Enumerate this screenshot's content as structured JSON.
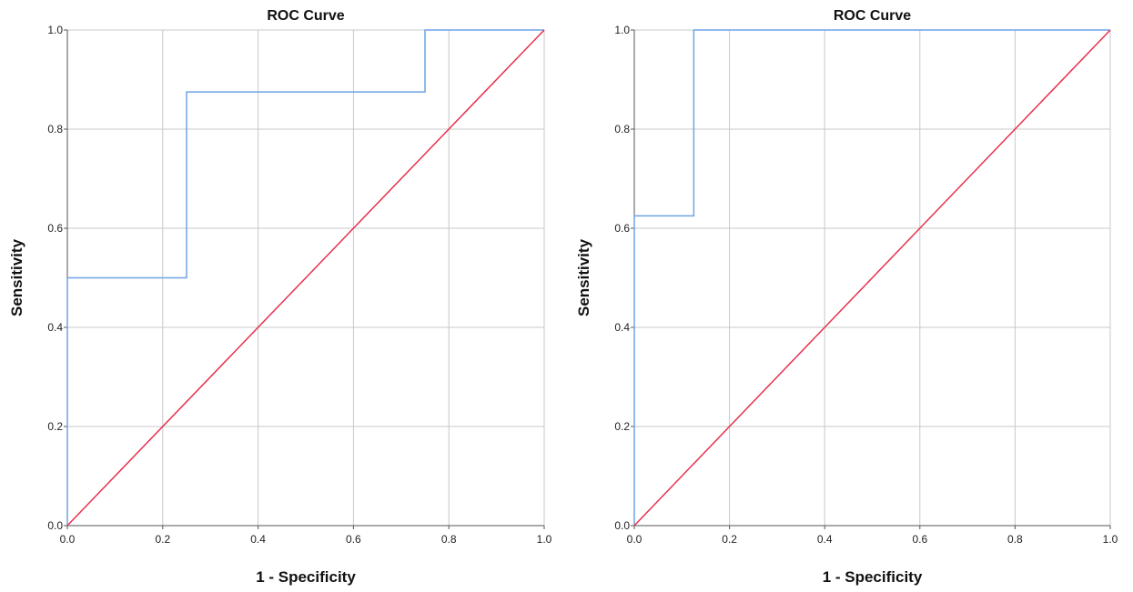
{
  "chart_data": [
    {
      "type": "line",
      "title": "ROC Curve",
      "xlabel": "1 - Specificity",
      "ylabel": "Sensitivity",
      "xlim": [
        0,
        1
      ],
      "ylim": [
        0,
        1
      ],
      "xticks": [
        "0.0",
        "0.2",
        "0.4",
        "0.6",
        "0.8",
        "1.0"
      ],
      "yticks": [
        "0.0",
        "0.2",
        "0.4",
        "0.6",
        "0.8",
        "1.0"
      ],
      "grid": true,
      "series": [
        {
          "name": "ROC",
          "color": "#6fa3e6",
          "step": true,
          "points": [
            [
              0,
              0
            ],
            [
              0,
              0.5
            ],
            [
              0.25,
              0.5
            ],
            [
              0.25,
              0.875
            ],
            [
              0.75,
              0.875
            ],
            [
              0.75,
              1
            ],
            [
              1,
              1
            ]
          ]
        },
        {
          "name": "Reference Line",
          "color": "#e8304e",
          "step": false,
          "points": [
            [
              0,
              0
            ],
            [
              1,
              1
            ]
          ]
        }
      ]
    },
    {
      "type": "line",
      "title": "ROC Curve",
      "xlabel": "1 - Specificity",
      "ylabel": "Sensitivity",
      "xlim": [
        0,
        1
      ],
      "ylim": [
        0,
        1
      ],
      "xticks": [
        "0.0",
        "0.2",
        "0.4",
        "0.6",
        "0.8",
        "1.0"
      ],
      "yticks": [
        "0.0",
        "0.2",
        "0.4",
        "0.6",
        "0.8",
        "1.0"
      ],
      "grid": true,
      "series": [
        {
          "name": "ROC",
          "color": "#6fa3e6",
          "step": true,
          "points": [
            [
              0,
              0
            ],
            [
              0,
              0.625
            ],
            [
              0.125,
              0.625
            ],
            [
              0.125,
              1
            ],
            [
              1,
              1
            ]
          ]
        },
        {
          "name": "Reference Line",
          "color": "#e8304e",
          "step": false,
          "points": [
            [
              0,
              0
            ],
            [
              1,
              1
            ]
          ]
        }
      ]
    }
  ]
}
